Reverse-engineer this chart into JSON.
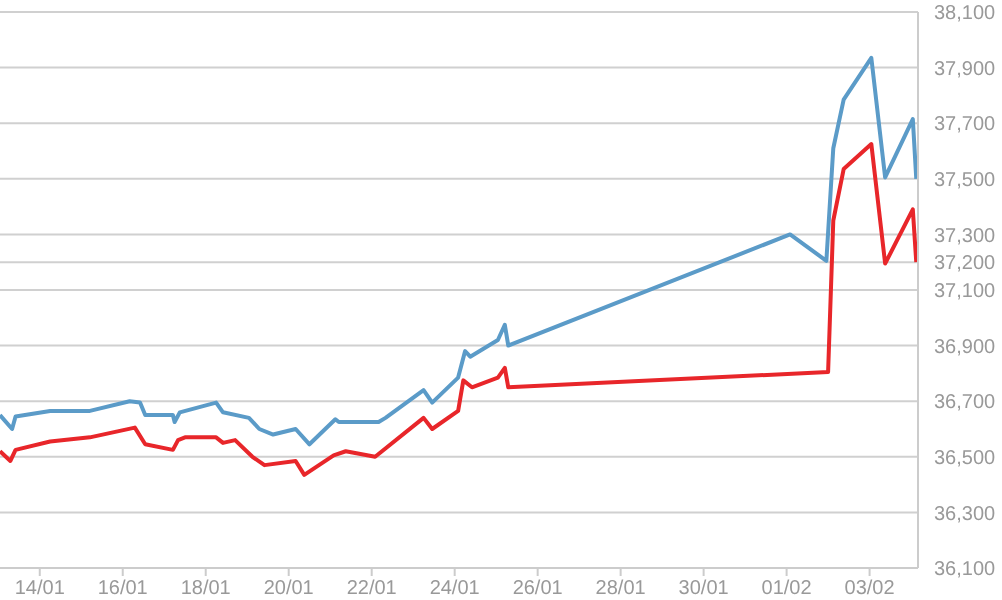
{
  "chart_data": {
    "type": "line",
    "grid": "y",
    "marker": "none",
    "line_style": "solid",
    "xlim": [
      "--01-13T01:00",
      "--02-04T04:00"
    ],
    "xticks": [
      {
        "value": "--01-14",
        "label": "14/01"
      },
      {
        "value": "--01-16",
        "label": "16/01"
      },
      {
        "value": "--01-18",
        "label": "18/01"
      },
      {
        "value": "--01-20",
        "label": "20/01"
      },
      {
        "value": "--01-22",
        "label": "22/01"
      },
      {
        "value": "--01-24",
        "label": "24/01"
      },
      {
        "value": "--01-26",
        "label": "26/01"
      },
      {
        "value": "--01-28",
        "label": "28/01"
      },
      {
        "value": "--01-30",
        "label": "30/01"
      },
      {
        "value": "--02-01",
        "label": "01/02"
      },
      {
        "value": "--02-03",
        "label": "03/02"
      }
    ],
    "ylim": [
      36100,
      38100
    ],
    "yticks": [
      {
        "value": 36100,
        "label": "36,100"
      },
      {
        "value": 36300,
        "label": "36,300"
      },
      {
        "value": 36500,
        "label": "36,500"
      },
      {
        "value": 36700,
        "label": "36,700"
      },
      {
        "value": 36900,
        "label": "36,900"
      },
      {
        "value": 37100,
        "label": "37,100"
      },
      {
        "value": 37200,
        "label": "37,200"
      },
      {
        "value": 37300,
        "label": "37,300"
      },
      {
        "value": 37500,
        "label": "37,500"
      },
      {
        "value": 37700,
        "label": "37,700"
      },
      {
        "value": 37900,
        "label": "37,900"
      },
      {
        "value": 38100,
        "label": "38,100"
      }
    ],
    "series": [
      {
        "color": "#5b9bc8",
        "x": [
          "--01-13T01:00",
          "--01-13T08:00",
          "--01-13T10:00",
          "--01-14T06:00",
          "--01-15T05:00",
          "--01-16T04:00",
          "--01-16T10:00",
          "--01-16T13:00",
          "--01-17T05:00",
          "--01-17T06:00",
          "--01-17T09:00",
          "--01-18T06:00",
          "--01-18T10:00",
          "--01-19T01:00",
          "--01-19T07:00",
          "--01-19T15:00",
          "--01-20T04:00",
          "--01-20T12:00",
          "--01-21T03:00",
          "--01-21T05:00",
          "--01-22T04:00",
          "--01-22T08:00",
          "--01-23T06:00",
          "--01-23T11:00",
          "--01-24T02:00",
          "--01-24T06:00",
          "--01-24T09:00",
          "--01-25T01:00",
          "--01-25T05:00",
          "--01-25T07:00",
          "--02-01T02:00",
          "--02-01T23:00",
          "--02-02T03:00",
          "--02-02T09:00",
          "--02-03T01:00",
          "--02-03T09:00",
          "--02-04T01:00",
          "--02-04T03:00"
        ],
        "values": [
          36650,
          36600,
          36645,
          36665,
          36665,
          36700,
          36695,
          36650,
          36650,
          36625,
          36660,
          36695,
          36660,
          36640,
          36600,
          36580,
          36600,
          36545,
          36635,
          36625,
          36625,
          36640,
          36740,
          36695,
          36785,
          36880,
          36860,
          36920,
          36975,
          36900,
          37300,
          37205,
          37610,
          37785,
          37935,
          37505,
          37715,
          37500
        ]
      },
      {
        "color": "#e8262a",
        "x": [
          "--01-13T01:00",
          "--01-13T07:00",
          "--01-13T10:00",
          "--01-14T06:00",
          "--01-15T05:00",
          "--01-16T07:00",
          "--01-16T13:00",
          "--01-17T05:00",
          "--01-17T08:00",
          "--01-17T12:00",
          "--01-18T06:00",
          "--01-18T10:00",
          "--01-18T17:00",
          "--01-19T03:00",
          "--01-19T10:00",
          "--01-20T04:00",
          "--01-20T09:00",
          "--01-21T02:00",
          "--01-21T09:00",
          "--01-22T02:00",
          "--01-23T06:00",
          "--01-23T11:00",
          "--01-24T02:00",
          "--01-24T05:00",
          "--01-24T10:00",
          "--01-25T01:00",
          "--01-25T05:00",
          "--01-25T07:00",
          "--02-02T00:00",
          "--02-02T03:00",
          "--02-02T09:00",
          "--02-03T01:00",
          "--02-03T09:00",
          "--02-04T01:00",
          "--02-04T03:00"
        ],
        "values": [
          36520,
          36485,
          36525,
          36555,
          36570,
          36605,
          36545,
          36525,
          36560,
          36570,
          36570,
          36550,
          36560,
          36500,
          36470,
          36485,
          36435,
          36505,
          36520,
          36500,
          36640,
          36600,
          36665,
          36775,
          36750,
          36785,
          36820,
          36750,
          36805,
          37350,
          37535,
          37625,
          37195,
          37390,
          37200
        ]
      }
    ]
  }
}
